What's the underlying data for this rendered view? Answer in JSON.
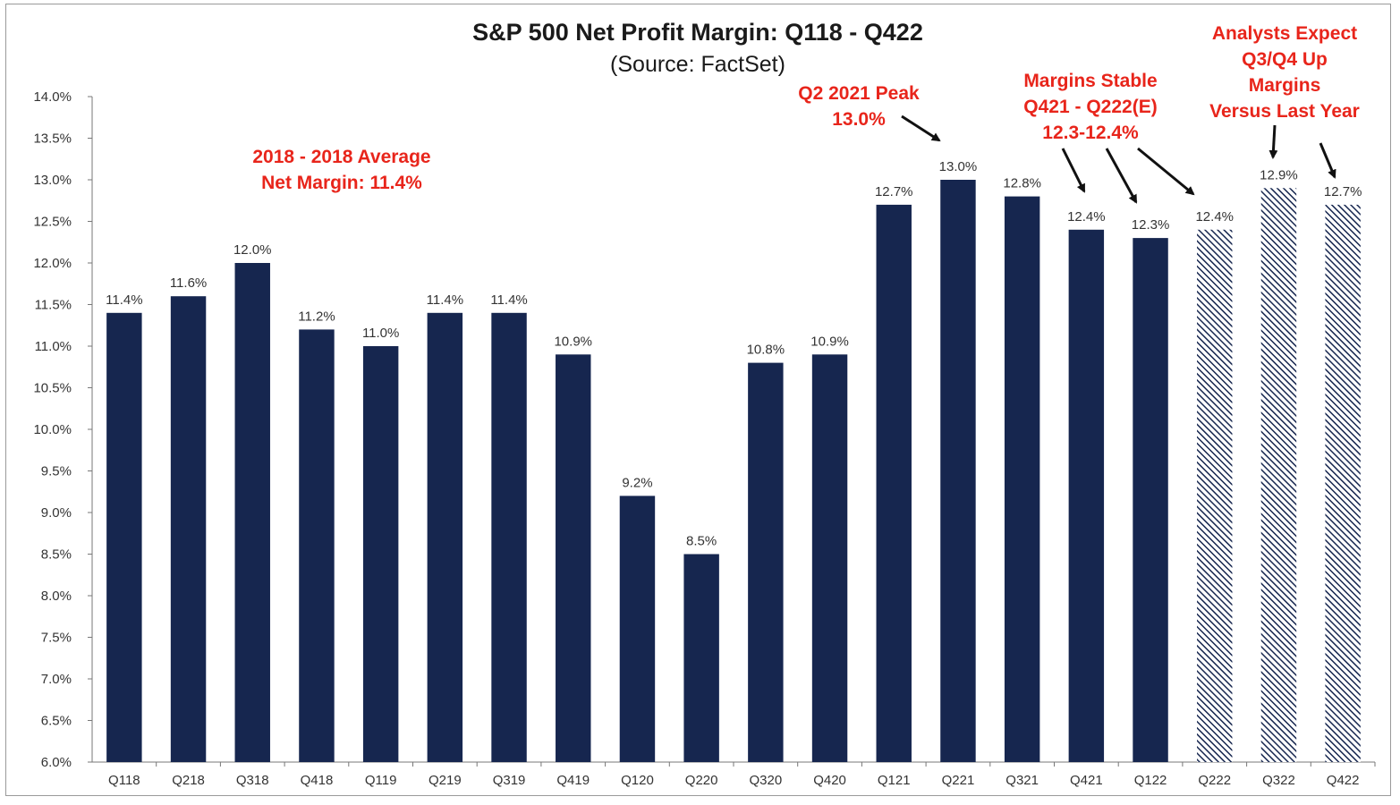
{
  "chart_data": {
    "type": "bar",
    "title": "S&P 500 Net Profit Margin: Q118 - Q422",
    "subtitle": "(Source: FactSet)",
    "categories": [
      "Q118",
      "Q218",
      "Q318",
      "Q418",
      "Q119",
      "Q219",
      "Q319",
      "Q419",
      "Q120",
      "Q220",
      "Q320",
      "Q420",
      "Q121",
      "Q221",
      "Q321",
      "Q421",
      "Q122",
      "Q222",
      "Q322",
      "Q422"
    ],
    "values": [
      11.4,
      11.6,
      12.0,
      11.2,
      11.0,
      11.4,
      11.4,
      10.9,
      9.2,
      8.5,
      10.8,
      10.9,
      12.7,
      13.0,
      12.8,
      12.4,
      12.3,
      12.4,
      12.9,
      12.7
    ],
    "data_labels": [
      "11.4%",
      "11.6%",
      "12.0%",
      "11.2%",
      "11.0%",
      "11.4%",
      "11.4%",
      "10.9%",
      "9.2%",
      "8.5%",
      "10.8%",
      "10.9%",
      "12.7%",
      "13.0%",
      "12.8%",
      "12.4%",
      "12.3%",
      "12.4%",
      "12.9%",
      "12.7%"
    ],
    "estimated": [
      false,
      false,
      false,
      false,
      false,
      false,
      false,
      false,
      false,
      false,
      false,
      false,
      false,
      false,
      false,
      false,
      false,
      true,
      true,
      true
    ],
    "ylim": [
      6.0,
      14.0
    ],
    "yticks": [
      "6.0%",
      "6.5%",
      "7.0%",
      "7.5%",
      "8.0%",
      "8.5%",
      "9.0%",
      "9.5%",
      "10.0%",
      "10.5%",
      "11.0%",
      "11.5%",
      "12.0%",
      "12.5%",
      "13.0%",
      "13.5%",
      "14.0%"
    ],
    "xlabel": "",
    "ylabel": "",
    "grid": false,
    "legend": "none",
    "colors": {
      "bar": "#16264f",
      "estimate_hatch": "#16264f",
      "annotation": "#e8251b"
    },
    "annotations": [
      {
        "lines": [
          "2018 - 2018 Average",
          "Net Margin: 11.4%"
        ]
      },
      {
        "lines": [
          "Q2 2021 Peak",
          "13.0%"
        ],
        "points_to": [
          "Q221"
        ]
      },
      {
        "lines": [
          "Margins Stable",
          "Q421 - Q222(E)",
          "12.3-12.4%"
        ],
        "points_to": [
          "Q421",
          "Q122",
          "Q222"
        ]
      },
      {
        "lines": [
          "Analysts Expect",
          "Q3/Q4  Up",
          "Margins",
          "Versus Last Year"
        ],
        "points_to": [
          "Q322",
          "Q422"
        ]
      }
    ]
  }
}
